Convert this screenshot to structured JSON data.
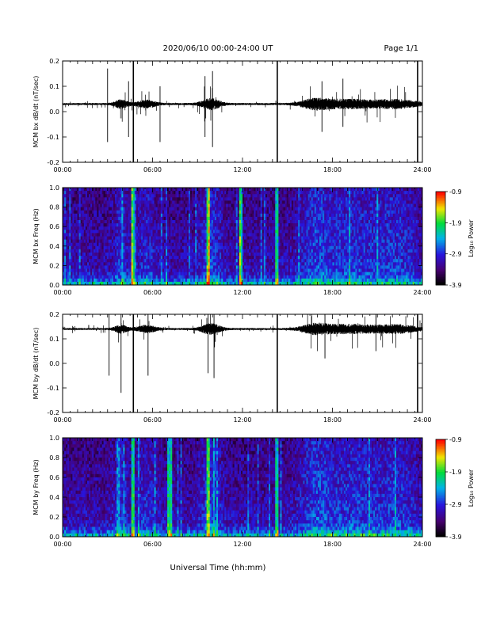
{
  "header": {
    "title": "2020/06/10  00:00-24:00 UT",
    "page": "Page 1/1"
  },
  "x_axis_label": "Universal Time (hh:mm)",
  "x_ticks": [
    "00:00",
    "06:00",
    "12:00",
    "18:00",
    "24:00"
  ],
  "colorbar": {
    "label": "Log₁₀ Power",
    "ticks": [
      "-0.9",
      "-1.9",
      "-2.9",
      "-3.9"
    ]
  },
  "chart_data": [
    {
      "type": "line",
      "ylabel": "MCM bx dB/dt (nT/sec)",
      "xlim": [
        0,
        24
      ],
      "ylim": [
        -0.2,
        0.2
      ],
      "yticks": [
        "0.2",
        "0.1",
        "0.0",
        "-0.1",
        "-0.2"
      ],
      "baseline": 0.03,
      "spikes": [
        {
          "t": 4.72,
          "lo": -0.2,
          "hi": 0.2
        },
        {
          "t": 14.32,
          "lo": -0.2,
          "hi": 0.2
        },
        {
          "t": 23.68,
          "lo": -0.2,
          "hi": 0.2
        }
      ]
    },
    {
      "type": "heatmap",
      "ylabel": "MCM bx Freq (Hz)",
      "xlim": [
        0,
        24
      ],
      "ylim": [
        0,
        1.0
      ],
      "yticks": [
        "1.0",
        "0.8",
        "0.6",
        "0.4",
        "0.2",
        "0.0"
      ],
      "zlim": [
        -3.9,
        -0.9
      ]
    },
    {
      "type": "line",
      "ylabel": "MCM by dB/dt (nT/sec)",
      "xlim": [
        0,
        24
      ],
      "ylim": [
        -0.2,
        0.2
      ],
      "yticks": [
        "0.2",
        "0.1",
        "0.0",
        "-0.1",
        "-0.2"
      ],
      "baseline": 0.14,
      "spikes": [
        {
          "t": 4.72,
          "lo": -0.2,
          "hi": 0.2
        },
        {
          "t": 14.32,
          "lo": -0.2,
          "hi": 0.2
        },
        {
          "t": 23.68,
          "lo": -0.2,
          "hi": 0.2
        }
      ]
    },
    {
      "type": "heatmap",
      "ylabel": "MCM by Freq (Hz)",
      "xlim": [
        0,
        24
      ],
      "ylim": [
        0,
        1.0
      ],
      "yticks": [
        "1.0",
        "0.8",
        "0.6",
        "0.4",
        "0.2",
        "0.0"
      ],
      "zlim": [
        -3.9,
        -0.9
      ]
    }
  ]
}
